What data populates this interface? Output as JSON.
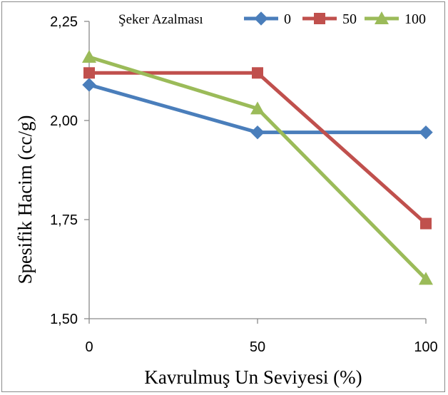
{
  "chart_data": {
    "type": "line",
    "title": "",
    "xlabel": "Kavrulmuş Un Seviyesi (%)",
    "ylabel": "Spesifik Hacim (cc/g)",
    "categories": [
      "0",
      "50",
      "100"
    ],
    "x": [
      0,
      50,
      100
    ],
    "ylim": [
      1.5,
      2.25
    ],
    "yticks": [
      "1,50",
      "1,75",
      "2,00",
      "2,25"
    ],
    "ytick_values": [
      1.5,
      1.75,
      2.0,
      2.25
    ],
    "grid": false,
    "legend": {
      "title": "Şeker Azalması",
      "placement": "top"
    },
    "series": [
      {
        "name": "0",
        "values": [
          2.09,
          1.97,
          1.97
        ],
        "color": "#4a7ebb",
        "marker": "diamond"
      },
      {
        "name": "50",
        "values": [
          2.12,
          2.12,
          1.74
        ],
        "color": "#c0504d",
        "marker": "square"
      },
      {
        "name": "100",
        "values": [
          2.16,
          2.03,
          1.6
        ],
        "color": "#9bbb59",
        "marker": "triangle"
      }
    ]
  }
}
